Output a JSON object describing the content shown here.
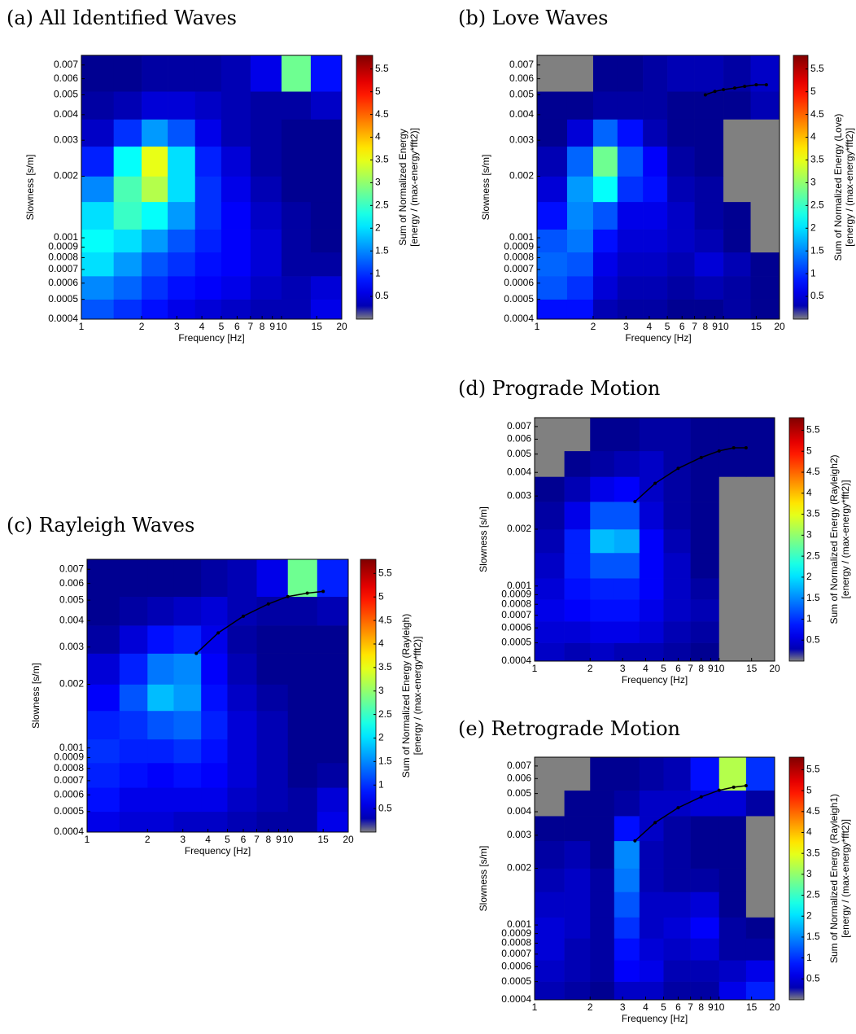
{
  "chart_data": [
    {
      "type": "heatmap",
      "title": "(a) All Identified Waves",
      "x_label": "Frequency [Hz]",
      "y_label": "Slowness [s/m]",
      "colorbar_label": [
        "Sum of Normalized Energy",
        "[energy / (max-energy*fft2)]"
      ],
      "log_x": true,
      "log_y": true,
      "xlim": [
        1,
        20
      ],
      "xticks": [
        1,
        2,
        3,
        4,
        5,
        6,
        7,
        8,
        9,
        10,
        15,
        20
      ],
      "ylim": [
        0.0004,
        0.0078
      ],
      "yticks": [
        0.0004,
        0.0005,
        0.0006,
        0.0007,
        0.0008,
        0.0009,
        0.001,
        0.002,
        0.003,
        0.004,
        0.005,
        0.006,
        0.007
      ],
      "x_bins": [
        1,
        1.45,
        2,
        2.7,
        3.7,
        5,
        7,
        10,
        14,
        20
      ],
      "y_bins": [
        0.0004,
        0.0005,
        0.00065,
        0.00085,
        0.0011,
        0.0015,
        0.002,
        0.0028,
        0.0038,
        0.0052,
        0.0078
      ],
      "z": [
        [
          1.2,
          1.0,
          0.8,
          0.6,
          0.5,
          0.4,
          0.3,
          0.3,
          0.6
        ],
        [
          1.5,
          1.3,
          1.0,
          0.8,
          0.7,
          0.6,
          0.4,
          0.3,
          0.5
        ],
        [
          2.0,
          1.6,
          1.2,
          1.0,
          0.8,
          0.7,
          0.5,
          0.2,
          0.2
        ],
        [
          2.2,
          2.0,
          1.6,
          1.2,
          0.9,
          0.7,
          0.5,
          0.2,
          0.1
        ],
        [
          2.0,
          2.5,
          2.2,
          1.6,
          1.0,
          0.7,
          0.4,
          0.2,
          0.1
        ],
        [
          1.5,
          2.6,
          3.2,
          2.0,
          1.0,
          0.6,
          0.3,
          0.1,
          0.1
        ],
        [
          0.9,
          2.2,
          3.5,
          2.0,
          0.9,
          0.5,
          0.2,
          0.1,
          0.1
        ],
        [
          0.4,
          1.0,
          1.6,
          1.2,
          0.6,
          0.3,
          0.2,
          0.1,
          0.1
        ],
        [
          0.2,
          0.3,
          0.5,
          0.5,
          0.4,
          0.3,
          0.2,
          0.2,
          0.4
        ],
        [
          0.1,
          0.1,
          0.2,
          0.2,
          0.2,
          0.3,
          0.6,
          2.8,
          0.8
        ]
      ],
      "clim": [
        0,
        5.8
      ],
      "cticks": [
        0.5,
        1,
        1.5,
        2,
        2.5,
        3,
        3.5,
        4,
        4.5,
        5,
        5.5
      ],
      "colormap": "jet",
      "empty_color": "#808080"
    },
    {
      "type": "heatmap",
      "title": "(b) Love Waves",
      "x_label": "Frequency [Hz]",
      "y_label": "Slowness [s/m]",
      "colorbar_label": [
        "Sum of Normalized Energy (Love)",
        "[energy / (max-energy*fft2)]"
      ],
      "log_x": true,
      "log_y": true,
      "xlim": [
        1,
        20
      ],
      "xticks": [
        1,
        2,
        3,
        4,
        5,
        6,
        7,
        8,
        9,
        10,
        15,
        20
      ],
      "ylim": [
        0.0004,
        0.0078
      ],
      "yticks": [
        0.0004,
        0.0005,
        0.0006,
        0.0007,
        0.0008,
        0.0009,
        0.001,
        0.002,
        0.003,
        0.004,
        0.005,
        0.006,
        0.007
      ],
      "x_bins": [
        1,
        1.45,
        2,
        2.7,
        3.7,
        5,
        7,
        10,
        14,
        20
      ],
      "y_bins": [
        0.0004,
        0.0005,
        0.00065,
        0.00085,
        0.0011,
        0.0015,
        0.002,
        0.0028,
        0.0038,
        0.0052,
        0.0078
      ],
      "z": [
        [
          0.8,
          0.8,
          0.3,
          0.2,
          0.2,
          0.1,
          0.1,
          0.2,
          0.1
        ],
        [
          1.2,
          1.0,
          0.5,
          0.3,
          0.3,
          0.2,
          0.3,
          0.2,
          0.1
        ],
        [
          1.3,
          1.2,
          0.6,
          0.4,
          0.4,
          0.3,
          0.5,
          0.3,
          0.1
        ],
        [
          1.2,
          1.4,
          0.8,
          0.5,
          0.5,
          0.4,
          0.3,
          0.1,
          0
        ],
        [
          0.8,
          1.5,
          1.2,
          0.6,
          0.6,
          0.4,
          0.2,
          0.1,
          0
        ],
        [
          0.5,
          1.6,
          2.2,
          1.0,
          0.8,
          0.3,
          0.2,
          0,
          0
        ],
        [
          0.3,
          1.3,
          2.8,
          1.2,
          0.7,
          0.2,
          0.1,
          0,
          0
        ],
        [
          0.1,
          0.5,
          1.3,
          0.8,
          0.3,
          0.1,
          0.1,
          0,
          0
        ],
        [
          0.1,
          0.1,
          0.2,
          0.2,
          0.2,
          0.1,
          0.1,
          0.1,
          0.3
        ],
        [
          0,
          0,
          0.1,
          0.1,
          0.2,
          0.3,
          0.3,
          0.2,
          0.4
        ]
      ],
      "clim": [
        0,
        5.8
      ],
      "cticks": [
        0.5,
        1,
        1.5,
        2,
        2.5,
        3,
        3.5,
        4,
        4.5,
        5,
        5.5
      ],
      "colormap": "jet",
      "empty_color": "#808080",
      "curve": {
        "color": "#000000",
        "x": [
          8,
          9,
          10,
          11.5,
          13,
          15,
          17
        ],
        "y": [
          0.005,
          0.0052,
          0.0053,
          0.0054,
          0.0055,
          0.0056,
          0.0056
        ]
      }
    },
    {
      "type": "heatmap",
      "title": "(c) Rayleigh Waves",
      "x_label": "Frequency [Hz]",
      "y_label": "Slowness [s/m]",
      "colorbar_label": [
        "Sum of Normalized Energy (Rayleigh)",
        "[energy / (max-energy*fft2)]"
      ],
      "log_x": true,
      "log_y": true,
      "xlim": [
        1,
        20
      ],
      "xticks": [
        1,
        2,
        3,
        4,
        5,
        6,
        7,
        8,
        9,
        10,
        15,
        20
      ],
      "ylim": [
        0.0004,
        0.0078
      ],
      "yticks": [
        0.0004,
        0.0005,
        0.0006,
        0.0007,
        0.0008,
        0.0009,
        0.001,
        0.002,
        0.003,
        0.004,
        0.005,
        0.006,
        0.007
      ],
      "x_bins": [
        1,
        1.45,
        2,
        2.7,
        3.7,
        5,
        7,
        10,
        14,
        20
      ],
      "y_bins": [
        0.0004,
        0.0005,
        0.00065,
        0.00085,
        0.0011,
        0.0015,
        0.002,
        0.0028,
        0.0038,
        0.0052,
        0.0078
      ],
      "z": [
        [
          0.6,
          0.5,
          0.5,
          0.4,
          0.4,
          0.3,
          0.2,
          0.2,
          0.6
        ],
        [
          0.8,
          0.6,
          0.6,
          0.6,
          0.6,
          0.4,
          0.3,
          0.2,
          0.5
        ],
        [
          0.9,
          0.8,
          0.7,
          0.8,
          0.7,
          0.5,
          0.3,
          0.1,
          0.2
        ],
        [
          1.0,
          0.9,
          0.9,
          1.0,
          0.8,
          0.5,
          0.3,
          0.1,
          0.1
        ],
        [
          0.9,
          1.0,
          1.2,
          1.3,
          0.9,
          0.5,
          0.3,
          0.1,
          0.1
        ],
        [
          0.7,
          1.2,
          1.8,
          1.6,
          0.8,
          0.4,
          0.2,
          0.1,
          0.1
        ],
        [
          0.5,
          0.9,
          1.4,
          1.5,
          0.7,
          0.3,
          0.1,
          0.1,
          0.1
        ],
        [
          0.2,
          0.5,
          0.8,
          0.9,
          0.6,
          0.2,
          0.1,
          0.1,
          0.1
        ],
        [
          0.1,
          0.2,
          0.3,
          0.4,
          0.5,
          0.3,
          0.2,
          0.2,
          0.3
        ],
        [
          0.1,
          0.1,
          0.1,
          0.1,
          0.2,
          0.3,
          0.6,
          2.8,
          0.9
        ]
      ],
      "clim": [
        0,
        5.8
      ],
      "cticks": [
        0.5,
        1,
        1.5,
        2,
        2.5,
        3,
        3.5,
        4,
        4.5,
        5,
        5.5
      ],
      "colormap": "jet",
      "empty_color": "#808080",
      "curve": {
        "color": "#000000",
        "x": [
          3.5,
          4.5,
          6,
          8,
          10,
          12.5,
          15
        ],
        "y": [
          0.0028,
          0.0035,
          0.0042,
          0.0048,
          0.0052,
          0.0054,
          0.0055
        ]
      }
    },
    {
      "type": "heatmap",
      "title": "(d) Prograde Motion",
      "x_label": "Frequency [Hz]",
      "y_label": "Slowness [s/m]",
      "colorbar_label": [
        "Sum of Normalized Energy (Rayleigh2)",
        "[energy / (max-energy*fft2)]"
      ],
      "log_x": true,
      "log_y": true,
      "xlim": [
        1,
        20
      ],
      "xticks": [
        1,
        2,
        3,
        4,
        5,
        6,
        7,
        8,
        9,
        10,
        15,
        20
      ],
      "ylim": [
        0.0004,
        0.0078
      ],
      "yticks": [
        0.0004,
        0.0005,
        0.0006,
        0.0007,
        0.0008,
        0.0009,
        0.001,
        0.002,
        0.003,
        0.004,
        0.005,
        0.006,
        0.007
      ],
      "x_bins": [
        1,
        1.45,
        2,
        2.7,
        3.7,
        5,
        7,
        10,
        14,
        20
      ],
      "y_bins": [
        0.0004,
        0.0005,
        0.00065,
        0.00085,
        0.0011,
        0.0015,
        0.002,
        0.0028,
        0.0038,
        0.0052,
        0.0078
      ],
      "z": [
        [
          0.4,
          0.3,
          0.4,
          0.3,
          0.3,
          0.2,
          0.1,
          0,
          0
        ],
        [
          0.5,
          0.5,
          0.6,
          0.6,
          0.5,
          0.3,
          0.2,
          0,
          0
        ],
        [
          0.6,
          0.7,
          0.8,
          0.8,
          0.6,
          0.4,
          0.3,
          0,
          0
        ],
        [
          0.5,
          0.8,
          0.9,
          0.9,
          0.7,
          0.4,
          0.2,
          0,
          0
        ],
        [
          0.4,
          0.9,
          1.2,
          1.2,
          0.7,
          0.4,
          0.1,
          0,
          0
        ],
        [
          0.3,
          0.9,
          1.8,
          1.7,
          0.7,
          0.3,
          0.1,
          0,
          0
        ],
        [
          0.2,
          0.6,
          1.2,
          1.2,
          0.5,
          0.2,
          0.1,
          0,
          0
        ],
        [
          0.1,
          0.3,
          0.6,
          0.7,
          0.4,
          0.2,
          0.1,
          0,
          0
        ],
        [
          0,
          0.1,
          0.2,
          0.3,
          0.4,
          0.2,
          0.1,
          0.1,
          0.1
        ],
        [
          0,
          0,
          0.1,
          0.1,
          0.2,
          0.2,
          0.1,
          0.1,
          0.1
        ]
      ],
      "clim": [
        0,
        5.8
      ],
      "cticks": [
        0.5,
        1,
        1.5,
        2,
        2.5,
        3,
        3.5,
        4,
        4.5,
        5,
        5.5
      ],
      "colormap": "jet",
      "empty_color": "#808080",
      "curve": {
        "color": "#000000",
        "x": [
          3.5,
          4.5,
          6,
          8,
          10,
          12,
          14
        ],
        "y": [
          0.0028,
          0.0035,
          0.0042,
          0.0048,
          0.0052,
          0.0054,
          0.0054
        ]
      }
    },
    {
      "type": "heatmap",
      "title": "(e) Retrograde Motion",
      "x_label": "Frequency [Hz]",
      "y_label": "Slowness [s/m]",
      "colorbar_label": [
        "Sum of Normalized Energy (Rayleigh1)",
        "[energy / (max-energy*fft2)]"
      ],
      "log_x": true,
      "log_y": true,
      "xlim": [
        1,
        20
      ],
      "xticks": [
        1,
        2,
        3,
        4,
        5,
        6,
        7,
        8,
        9,
        10,
        15,
        20
      ],
      "ylim": [
        0.0004,
        0.0078
      ],
      "yticks": [
        0.0004,
        0.0005,
        0.0006,
        0.0007,
        0.0008,
        0.0009,
        0.001,
        0.002,
        0.003,
        0.004,
        0.005,
        0.006,
        0.007
      ],
      "x_bins": [
        1,
        1.45,
        2,
        2.7,
        3.7,
        5,
        7,
        10,
        14,
        20
      ],
      "y_bins": [
        0.0004,
        0.0005,
        0.00065,
        0.00085,
        0.0011,
        0.0015,
        0.002,
        0.0028,
        0.0038,
        0.0052,
        0.0078
      ],
      "z": [
        [
          0.3,
          0.2,
          0.1,
          0.4,
          0.4,
          0.2,
          0.2,
          0.6,
          0.9
        ],
        [
          0.4,
          0.3,
          0.2,
          0.7,
          0.6,
          0.3,
          0.3,
          0.4,
          0.6
        ],
        [
          0.5,
          0.3,
          0.2,
          0.8,
          0.5,
          0.4,
          0.5,
          0.2,
          0.2
        ],
        [
          0.5,
          0.4,
          0.2,
          1.0,
          0.4,
          0.5,
          0.7,
          0.2,
          0.1
        ],
        [
          0.4,
          0.4,
          0.2,
          1.2,
          0.4,
          0.4,
          0.5,
          0.1,
          0
        ],
        [
          0.3,
          0.4,
          0.2,
          1.4,
          0.3,
          0.2,
          0.2,
          0.1,
          0
        ],
        [
          0.2,
          0.3,
          0.1,
          1.5,
          0.3,
          0.2,
          0.1,
          0.1,
          0
        ],
        [
          0.1,
          0.1,
          0.1,
          0.8,
          0.4,
          0.2,
          0.1,
          0.1,
          0
        ],
        [
          0,
          0.1,
          0.1,
          0.2,
          0.4,
          0.4,
          0.5,
          0.5,
          0.2
        ],
        [
          0,
          0,
          0.1,
          0.1,
          0.2,
          0.3,
          0.8,
          3.2,
          1.0
        ]
      ],
      "clim": [
        0,
        5.8
      ],
      "cticks": [
        0.5,
        1,
        1.5,
        2,
        2.5,
        3,
        3.5,
        4,
        4.5,
        5,
        5.5
      ],
      "colormap": "jet",
      "empty_color": "#808080",
      "curve": {
        "color": "#000000",
        "x": [
          3.5,
          4.5,
          6,
          8,
          10,
          12,
          14
        ],
        "y": [
          0.0028,
          0.0035,
          0.0042,
          0.0048,
          0.0052,
          0.0054,
          0.0055
        ]
      }
    }
  ]
}
